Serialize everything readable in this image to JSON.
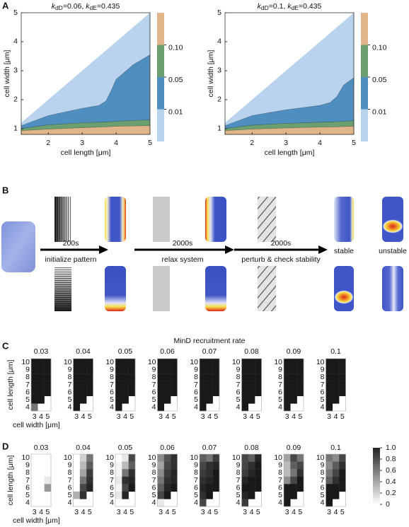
{
  "panel_a": {
    "label": "A",
    "x_label": "cell length [μm]",
    "y_label": "cell width [μm]",
    "xlim": [
      1.2,
      5
    ],
    "ylim": [
      0.8,
      5
    ],
    "xticks": [
      2,
      3,
      4,
      5
    ],
    "yticks": [
      1,
      2,
      3,
      4,
      5
    ],
    "colors": [
      "#b9d3ee",
      "#4f8fc0",
      "#6b9f6f",
      "#e2b48a"
    ],
    "colorbar_ticks": [
      0.01,
      0.05,
      {
        "value": 0.1,
        "label": "0.10"
      }
    ],
    "plots": [
      {
        "title": {
          "k1": "k",
          "s1": "dD",
          "v1": "=0.06, ",
          "k2": "k",
          "s2": "dE",
          "v2": "=0.435"
        },
        "x": [
          1.2,
          2,
          3,
          3.5,
          3.7,
          3.85,
          4,
          4.5,
          5
        ],
        "boundaries": [
          [
            1.2,
            2,
            3,
            3.5,
            3.7,
            3.85,
            4,
            4.5,
            5
          ],
          [
            1.1,
            1.45,
            1.7,
            1.8,
            1.95,
            2.3,
            2.7,
            3.2,
            3.55
          ],
          [
            1.0,
            1.13,
            1.2,
            1.22,
            1.23,
            1.24,
            1.25,
            1.28,
            1.3
          ],
          [
            0.93,
            0.98,
            1.03,
            1.05,
            1.06,
            1.07,
            1.08,
            1.09,
            1.1
          ]
        ]
      },
      {
        "title": {
          "k1": "k",
          "s1": "dD",
          "v1": "=0.1, ",
          "k2": "k",
          "s2": "dE",
          "v2": "=0.435"
        },
        "x": [
          1.2,
          2,
          3,
          4,
          4.3,
          4.5,
          4.7,
          5
        ],
        "boundaries": [
          [
            1.2,
            2,
            3,
            4,
            4.3,
            4.5,
            4.7,
            5
          ],
          [
            1.1,
            1.45,
            1.65,
            1.8,
            1.9,
            2.1,
            2.5,
            2.75
          ],
          [
            1.0,
            1.12,
            1.18,
            1.22,
            1.23,
            1.24,
            1.25,
            1.27
          ],
          [
            0.93,
            0.98,
            1.02,
            1.05,
            1.06,
            1.06,
            1.07,
            1.08
          ]
        ]
      }
    ]
  },
  "panel_b": {
    "label": "B",
    "steps": [
      {
        "time": "200s",
        "caption": "initialize pattern"
      },
      {
        "time": "2000s",
        "caption": "relax system"
      },
      {
        "time": "2000s",
        "caption": "perturb & check stability"
      }
    ],
    "outcomes": [
      "stable",
      "unstable"
    ]
  },
  "panel_c": {
    "label": "C",
    "title": "MinD recruitment rate",
    "y_label": "cell length [μm]",
    "x_label": "cell width [μm]",
    "row_labels": [
      10,
      9,
      8,
      7,
      6,
      5,
      4
    ],
    "col_labels": [
      3,
      4,
      5
    ],
    "rates": [
      0.03,
      0.04,
      0.05,
      0.06,
      0.07,
      0.08,
      0.09,
      0.1
    ],
    "grids": [
      [
        [
          1,
          1,
          1
        ],
        [
          1,
          1,
          1
        ],
        [
          1,
          1,
          1
        ],
        [
          1,
          1,
          1
        ],
        [
          1,
          1,
          1
        ],
        [
          1,
          1,
          null
        ],
        [
          0.6,
          null,
          null
        ]
      ],
      [
        [
          1,
          1,
          1
        ],
        [
          1,
          1,
          1
        ],
        [
          1,
          1,
          1
        ],
        [
          1,
          1,
          1
        ],
        [
          1,
          1,
          1
        ],
        [
          1,
          1,
          null
        ],
        [
          1,
          null,
          null
        ]
      ],
      [
        [
          1,
          1,
          1
        ],
        [
          1,
          1,
          1
        ],
        [
          1,
          1,
          1
        ],
        [
          1,
          1,
          1
        ],
        [
          1,
          1,
          1
        ],
        [
          1,
          1,
          null
        ],
        [
          1,
          null,
          null
        ]
      ],
      [
        [
          1,
          1,
          1
        ],
        [
          1,
          1,
          1
        ],
        [
          1,
          1,
          1
        ],
        [
          1,
          1,
          1
        ],
        [
          1,
          1,
          1
        ],
        [
          1,
          1,
          null
        ],
        [
          1,
          null,
          null
        ]
      ],
      [
        [
          1,
          1,
          1
        ],
        [
          1,
          1,
          1
        ],
        [
          1,
          1,
          1
        ],
        [
          1,
          1,
          1
        ],
        [
          1,
          1,
          1
        ],
        [
          1,
          1,
          null
        ],
        [
          1,
          null,
          null
        ]
      ],
      [
        [
          1,
          1,
          1
        ],
        [
          1,
          1,
          1
        ],
        [
          1,
          1,
          1
        ],
        [
          1,
          1,
          1
        ],
        [
          1,
          1,
          1
        ],
        [
          1,
          1,
          null
        ],
        [
          1,
          null,
          null
        ]
      ],
      [
        [
          1,
          1,
          1
        ],
        [
          1,
          1,
          1
        ],
        [
          1,
          1,
          1
        ],
        [
          1,
          1,
          1
        ],
        [
          1,
          1,
          1
        ],
        [
          1,
          1,
          null
        ],
        [
          1,
          null,
          null
        ]
      ],
      [
        [
          1,
          1,
          1
        ],
        [
          1,
          1,
          1
        ],
        [
          1,
          1,
          1
        ],
        [
          1,
          1,
          1
        ],
        [
          1,
          1,
          1
        ],
        [
          1,
          1,
          null
        ],
        [
          1,
          null,
          null
        ]
      ]
    ]
  },
  "panel_d": {
    "label": "D",
    "y_label": "cell length [μm]",
    "x_label": "cell width [μm]",
    "row_labels": [
      10,
      9,
      8,
      7,
      6,
      5,
      4
    ],
    "col_labels": [
      3,
      4,
      5
    ],
    "rates": [
      0.03,
      0.04,
      0.05,
      0.06,
      0.07,
      0.08,
      0.09,
      0.1
    ],
    "colorbar_ticks": [
      0,
      0.2,
      0.4,
      0.6,
      0.8,
      {
        "value": 1,
        "label": "1.0"
      }
    ],
    "grids": [
      [
        [
          0,
          0,
          0
        ],
        [
          0,
          0,
          0
        ],
        [
          0,
          0,
          0
        ],
        [
          0,
          0,
          0.1
        ],
        [
          0,
          0,
          0.45
        ],
        [
          0,
          0,
          null
        ],
        [
          0,
          null,
          null
        ]
      ],
      [
        [
          0,
          0.2,
          0.6
        ],
        [
          0,
          0.3,
          0.7
        ],
        [
          0,
          0.4,
          0.85
        ],
        [
          0,
          0.6,
          0.9
        ],
        [
          0,
          0.8,
          0.95
        ],
        [
          0.35,
          0.9,
          null
        ],
        [
          0,
          null,
          null
        ]
      ],
      [
        [
          0,
          0.1,
          0.8
        ],
        [
          0.05,
          0.3,
          0.7
        ],
        [
          0.05,
          0.6,
          0.9
        ],
        [
          0.1,
          0.9,
          0.95
        ],
        [
          0.05,
          0.8,
          1
        ],
        [
          0.1,
          0.95,
          null
        ],
        [
          0,
          null,
          null
        ]
      ],
      [
        [
          0.5,
          0.75,
          0.9
        ],
        [
          0.4,
          0.8,
          0.9
        ],
        [
          0.5,
          0.85,
          0.95
        ],
        [
          0.6,
          0.9,
          0.95
        ],
        [
          0.7,
          0.95,
          1
        ],
        [
          0.8,
          1,
          null
        ],
        [
          0.1,
          null,
          null
        ]
      ],
      [
        [
          0.7,
          0.6,
          0.85
        ],
        [
          0.8,
          0.9,
          0.95
        ],
        [
          0.85,
          0.9,
          1
        ],
        [
          0.9,
          0.95,
          1
        ],
        [
          0.95,
          1,
          1
        ],
        [
          0.9,
          1,
          null
        ],
        [
          0.8,
          null,
          null
        ]
      ],
      [
        [
          0.8,
          0.7,
          0.95
        ],
        [
          0.8,
          0.9,
          1
        ],
        [
          0.85,
          0.95,
          1
        ],
        [
          0.95,
          1,
          1
        ],
        [
          1,
          1,
          1
        ],
        [
          0.95,
          1,
          null
        ],
        [
          0.85,
          null,
          null
        ]
      ],
      [
        [
          0.4,
          0.8,
          0.6
        ],
        [
          0.3,
          0.7,
          0.8
        ],
        [
          0.3,
          0.6,
          0.9
        ],
        [
          0.5,
          0.8,
          1
        ],
        [
          1,
          1,
          1
        ],
        [
          1,
          1,
          null
        ],
        [
          1,
          null,
          null
        ]
      ],
      [
        [
          0.6,
          0.5,
          0.8
        ],
        [
          0.5,
          0.7,
          0.9
        ],
        [
          0.6,
          0.8,
          1
        ],
        [
          0.7,
          0.9,
          1
        ],
        [
          1,
          1,
          1
        ],
        [
          1,
          1,
          null
        ],
        [
          1,
          null,
          null
        ]
      ]
    ]
  }
}
